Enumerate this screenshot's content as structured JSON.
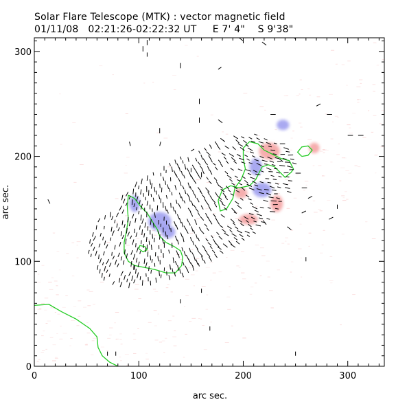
{
  "header": {
    "title": "Solar Flare Telescope (MTK) : vector magnetic field",
    "subtitle": "01/11/08   02:21:26-02:22:32 UT     E 7' 4\"    S 9'38\""
  },
  "chart_data": {
    "type": "vector-field",
    "title": "Solar Flare Telescope (MTK) : vector magnetic field",
    "xlabel": "arc sec.",
    "ylabel": "arc sec.",
    "xlim": [
      0,
      335
    ],
    "ylim": [
      0,
      313
    ],
    "x_ticks": [
      0,
      100,
      200,
      300
    ],
    "y_ticks": [
      0,
      100,
      200,
      300
    ],
    "colors": {
      "positive_polarity": "#f4a0a0",
      "negative_polarity": "#9a9aee",
      "contour": "#22cc22",
      "vectors": "#000000"
    },
    "polarity_patches": [
      {
        "polarity": "negative",
        "x": 96,
        "y": 155,
        "rx": 5,
        "ry": 8
      },
      {
        "polarity": "negative",
        "x": 120,
        "y": 138,
        "rx": 11,
        "ry": 9
      },
      {
        "polarity": "negative",
        "x": 128,
        "y": 128,
        "rx": 7,
        "ry": 6
      },
      {
        "polarity": "negative",
        "x": 218,
        "y": 168,
        "rx": 9,
        "ry": 7
      },
      {
        "polarity": "negative",
        "x": 212,
        "y": 190,
        "rx": 6,
        "ry": 8
      },
      {
        "polarity": "negative",
        "x": 238,
        "y": 230,
        "rx": 6,
        "ry": 5
      },
      {
        "polarity": "positive",
        "x": 225,
        "y": 205,
        "rx": 10,
        "ry": 8
      },
      {
        "polarity": "positive",
        "x": 268,
        "y": 208,
        "rx": 5,
        "ry": 5
      },
      {
        "polarity": "positive",
        "x": 232,
        "y": 155,
        "rx": 6,
        "ry": 8
      },
      {
        "polarity": "positive",
        "x": 198,
        "y": 165,
        "rx": 6,
        "ry": 5
      },
      {
        "polarity": "positive",
        "x": 205,
        "y": 140,
        "rx": 9,
        "ry": 5
      }
    ],
    "contours": [
      [
        [
          90,
          163
        ],
        [
          96,
          160
        ],
        [
          102,
          152
        ],
        [
          108,
          146
        ],
        [
          113,
          138
        ],
        [
          118,
          130
        ],
        [
          120,
          124
        ],
        [
          126,
          118
        ],
        [
          134,
          114
        ],
        [
          140,
          110
        ],
        [
          142,
          104
        ],
        [
          141,
          96
        ],
        [
          135,
          89
        ],
        [
          126,
          89
        ],
        [
          116,
          92
        ],
        [
          106,
          94
        ],
        [
          96,
          96
        ],
        [
          90,
          100
        ],
        [
          86,
          108
        ],
        [
          86,
          118
        ],
        [
          88,
          128
        ],
        [
          90,
          140
        ],
        [
          89,
          152
        ],
        [
          90,
          163
        ]
      ],
      [
        [
          100,
          112
        ],
        [
          104,
          109
        ],
        [
          108,
          111
        ],
        [
          106,
          114
        ],
        [
          101,
          115
        ],
        [
          100,
          112
        ]
      ],
      [
        [
          176,
          158
        ],
        [
          180,
          168
        ],
        [
          188,
          172
        ],
        [
          196,
          170
        ],
        [
          206,
          172
        ],
        [
          212,
          178
        ],
        [
          218,
          190
        ],
        [
          224,
          192
        ],
        [
          230,
          190
        ],
        [
          240,
          180
        ],
        [
          246,
          185
        ],
        [
          248,
          188
        ],
        [
          244,
          196
        ],
        [
          236,
          198
        ],
        [
          228,
          202
        ],
        [
          220,
          206
        ],
        [
          214,
          212
        ],
        [
          206,
          214
        ],
        [
          200,
          208
        ],
        [
          200,
          198
        ],
        [
          202,
          188
        ],
        [
          198,
          178
        ],
        [
          192,
          170
        ],
        [
          190,
          160
        ],
        [
          184,
          150
        ],
        [
          178,
          148
        ],
        [
          176,
          158
        ]
      ],
      [
        [
          256,
          200
        ],
        [
          262,
          201
        ],
        [
          266,
          206
        ],
        [
          262,
          210
        ],
        [
          256,
          209
        ],
        [
          252,
          204
        ],
        [
          256,
          200
        ]
      ],
      [
        [
          0,
          58
        ],
        [
          14,
          59
        ],
        [
          26,
          52
        ],
        [
          40,
          45
        ],
        [
          53,
          36
        ],
        [
          60,
          28
        ],
        [
          61,
          18
        ],
        [
          65,
          10
        ],
        [
          72,
          4
        ],
        [
          80,
          0
        ]
      ]
    ],
    "vectors": [
      [
        104,
        300,
        0,
        5
      ],
      [
        140,
        284,
        0,
        5
      ],
      [
        158,
        250,
        0,
        5
      ],
      [
        158,
        232,
        0,
        5
      ],
      [
        120,
        222,
        0,
        5
      ],
      [
        92,
        210,
        -1,
        4
      ],
      [
        120,
        210,
        1,
        4
      ],
      [
        235,
        212,
        5,
        0
      ],
      [
        238,
        195,
        -4,
        3
      ],
      [
        180,
        232,
        -4,
        3
      ],
      [
        150,
        205,
        3,
        2
      ],
      [
        160,
        180,
        0,
        5
      ],
      [
        150,
        185,
        0,
        4
      ],
      [
        15,
        155,
        -2,
        4
      ],
      [
        108,
        112,
        0,
        4
      ],
      [
        222,
        135,
        -3,
        4
      ],
      [
        246,
        130,
        -4,
        3
      ],
      [
        260,
        100,
        0,
        4
      ],
      [
        290,
        150,
        0,
        4
      ],
      [
        226,
        240,
        5,
        0
      ],
      [
        280,
        240,
        5,
        0
      ],
      [
        200,
        310,
        -4,
        3
      ],
      [
        222,
        306,
        -4,
        3
      ],
      [
        250,
        312,
        -4,
        3
      ],
      [
        108,
        306,
        0,
        5
      ],
      [
        108,
        295,
        0,
        4
      ],
      [
        160,
        70,
        0,
        4
      ],
      [
        168,
        34,
        0,
        4
      ],
      [
        140,
        60,
        0,
        4
      ],
      [
        96,
        92,
        0,
        4
      ],
      [
        250,
        10,
        0,
        4
      ],
      [
        78,
        10,
        0,
        4
      ],
      [
        70,
        10,
        0,
        4
      ],
      [
        250,
        184,
        5,
        0
      ],
      [
        256,
        170,
        5,
        0
      ],
      [
        262,
        160,
        4,
        2
      ],
      [
        256,
        146,
        4,
        2
      ],
      [
        282,
        140,
        4,
        2
      ],
      [
        300,
        220,
        5,
        0
      ],
      [
        310,
        220,
        5,
        0
      ],
      [
        270,
        248,
        4,
        2
      ],
      [
        176,
        283,
        3,
        2
      ]
    ],
    "field_region": {
      "center": [
        150,
        150
      ],
      "extent": [
        110,
        75
      ],
      "angle_deg": 30,
      "spacing": 6
    }
  }
}
